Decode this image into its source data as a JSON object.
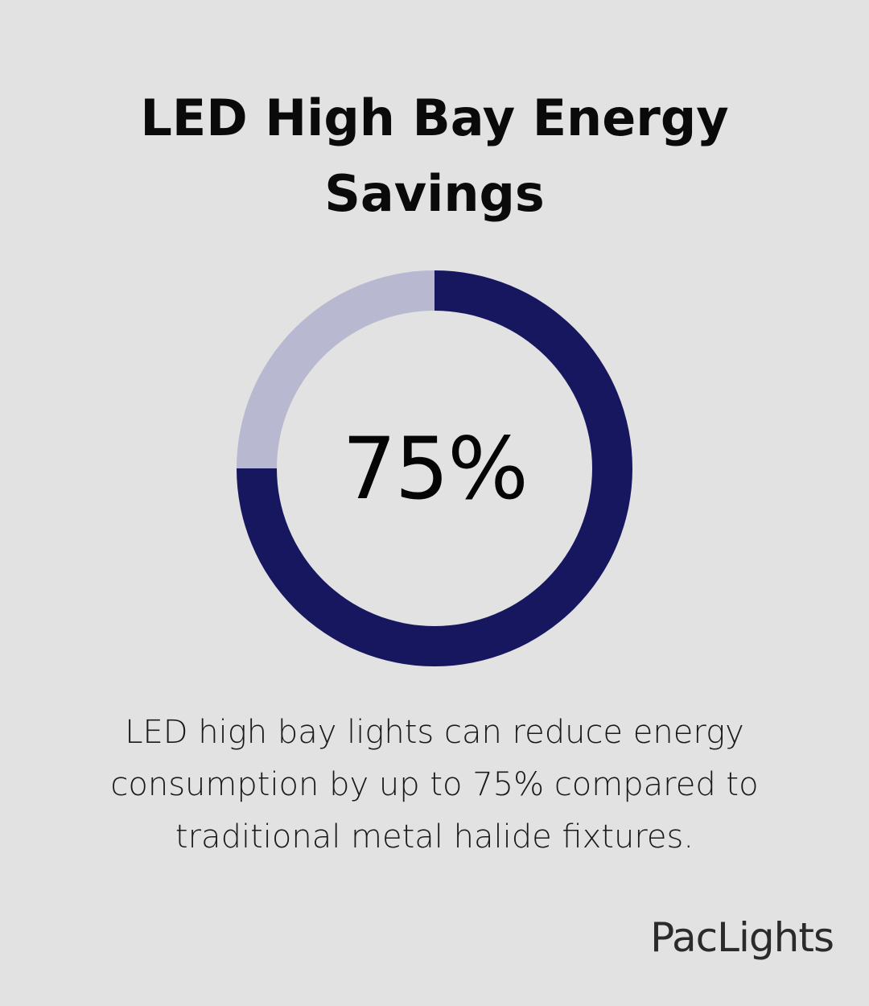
{
  "title": "LED High Bay Energy Savings",
  "center_label": "75%",
  "description": "LED high bay lights can reduce energy consumption by up to 75% compared to traditional metal halide fixtures.",
  "brand": "PacLights",
  "colors": {
    "background": "#e1e2e1",
    "filled": "#16175e",
    "remainder": "#b8b9d0"
  },
  "chart_data": {
    "type": "pie",
    "variant": "donut",
    "values": [
      75,
      25
    ],
    "start_angle": "top",
    "direction": "clockwise"
  }
}
